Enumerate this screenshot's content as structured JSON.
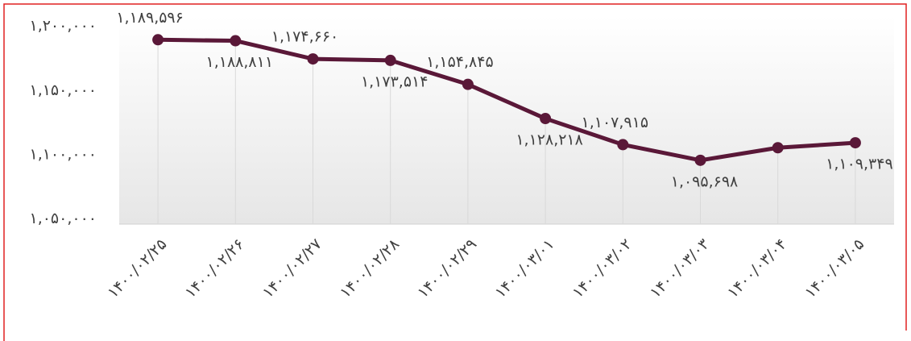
{
  "chart_data": {
    "type": "line",
    "categories": [
      "۱۴۰۰/۰۲/۲۵",
      "۱۴۰۰/۰۲/۲۶",
      "۱۴۰۰/۰۲/۲۷",
      "۱۴۰۰/۰۲/۲۸",
      "۱۴۰۰/۰۲/۲۹",
      "۱۴۰۰/۰۳/۰۱",
      "۱۴۰۰/۰۳/۰۲",
      "۱۴۰۰/۰۳/۰۳",
      "۱۴۰۰/۰۳/۰۴",
      "۱۴۰۰/۰۳/۰۵"
    ],
    "values": [
      1189596,
      1188811,
      1174660,
      1173514,
      1154845,
      1128218,
      1107915,
      1095698,
      1105500,
      1109349
    ],
    "value_labels": [
      "۱,۱۸۹,۵۹۶",
      "۱,۱۸۸,۸۱۱",
      "۱,۱۷۴,۶۶۰",
      "۱,۱۷۳,۵۱۴",
      "۱,۱۵۴,۸۴۵",
      "۱,۱۲۸,۲۱۸",
      "۱,۱۰۷,۹۱۵",
      "۱,۰۹۵,۶۹۸",
      null,
      "۱,۱۰۹,۳۴۹"
    ],
    "color": "#5a1838",
    "ylim": [
      1046000,
      1208000
    ],
    "yticks": [
      {
        "value": 1050000,
        "label": "۱,۰۵۰,۰۰۰"
      },
      {
        "value": 1100000,
        "label": "۱,۱۰۰,۰۰۰"
      },
      {
        "value": 1150000,
        "label": "۱,۱۵۰,۰۰۰"
      },
      {
        "value": 1200000,
        "label": "۱,۲۰۰,۰۰۰"
      }
    ],
    "grid": false
  }
}
